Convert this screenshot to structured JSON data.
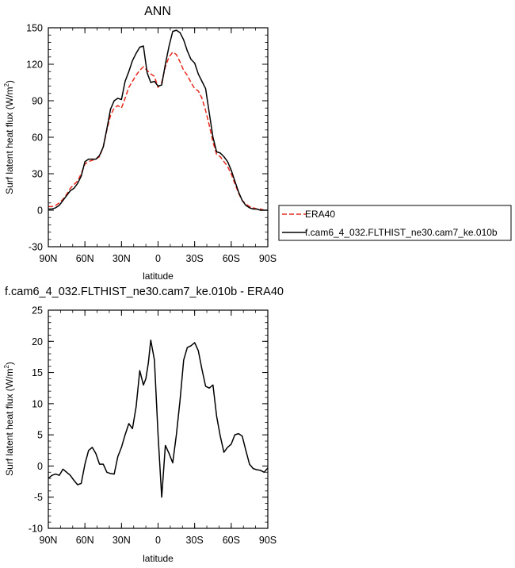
{
  "chart_data": [
    {
      "type": "line",
      "title": "ANN",
      "xlabel": "latitude",
      "ylabel": "Surf latent heat flux (W/m",
      "ylabel_sup": "2",
      "ylabel_close": ")",
      "xlim": [
        90,
        -90
      ],
      "ylim": [
        -30,
        150
      ],
      "x_ticks": [
        90,
        60,
        30,
        0,
        -30,
        -60,
        -90
      ],
      "x_tick_labels": [
        "90N",
        "60N",
        "30N",
        "0",
        "30S",
        "60S",
        "90S"
      ],
      "y_ticks": [
        -30,
        0,
        30,
        60,
        90,
        120,
        150
      ],
      "y_tick_labels": [
        "-30",
        "0",
        "30",
        "60",
        "90",
        "120",
        "150"
      ],
      "legend_position": "right",
      "series": [
        {
          "name": "ERA40",
          "color": "#e8291c",
          "dash": "dashed",
          "x": [
            90,
            87,
            84,
            81,
            78,
            75,
            72,
            69,
            66,
            63,
            60,
            57,
            54,
            51,
            48,
            45,
            42,
            39,
            36,
            33,
            30,
            27,
            24,
            21,
            18,
            15,
            12,
            9,
            6,
            3,
            0,
            -3,
            -6,
            -9,
            -12,
            -15,
            -18,
            -21,
            -24,
            -27,
            -30,
            -33,
            -36,
            -39,
            -42,
            -45,
            -48,
            -51,
            -54,
            -57,
            -60,
            -63,
            -66,
            -69,
            -72,
            -75,
            -78,
            -81,
            -84,
            -87,
            -90
          ],
          "y": [
            3,
            3,
            4,
            6,
            9,
            13,
            18,
            21,
            24,
            30,
            38,
            40,
            41,
            42,
            44,
            52,
            66,
            78,
            84,
            86,
            84,
            92,
            101,
            106,
            111,
            115,
            118,
            115,
            112,
            110,
            101,
            105,
            118,
            126,
            130,
            128,
            122,
            115,
            111,
            105,
            100,
            98,
            92,
            82,
            70,
            56,
            46,
            44,
            40,
            36,
            30,
            22,
            14,
            8,
            5,
            3,
            2,
            1,
            1,
            0,
            0
          ]
        },
        {
          "name": "f.cam6_4_032.FLTHIST_ne30.cam7_ke.010b",
          "color": "#000000",
          "dash": "solid",
          "x": [
            90,
            87,
            84,
            81,
            78,
            75,
            72,
            69,
            66,
            63,
            60,
            57,
            54,
            51,
            48,
            45,
            42,
            39,
            36,
            33,
            30,
            27,
            24,
            21,
            18,
            15,
            12,
            9,
            6,
            3,
            0,
            -3,
            -6,
            -9,
            -12,
            -15,
            -18,
            -21,
            -24,
            -27,
            -30,
            -33,
            -36,
            -39,
            -42,
            -45,
            -48,
            -51,
            -54,
            -57,
            -60,
            -63,
            -66,
            -69,
            -72,
            -75,
            -78,
            -81,
            -84,
            -87,
            -90
          ],
          "y": [
            1,
            1,
            2,
            4,
            8,
            12,
            16,
            18,
            22,
            28,
            40,
            42,
            42,
            42,
            45,
            52,
            67,
            83,
            90,
            92,
            91,
            106,
            114,
            123,
            129,
            134,
            135,
            113,
            105,
            106,
            102,
            103,
            120,
            135,
            147,
            148,
            146,
            140,
            131,
            124,
            121,
            112,
            106,
            100,
            80,
            60,
            48,
            47,
            44,
            40,
            33,
            24,
            15,
            8,
            4,
            2,
            1,
            1,
            0,
            0,
            0
          ]
        }
      ]
    },
    {
      "type": "line",
      "title": "f.cam6_4_032.FLTHIST_ne30.cam7_ke.010b - ERA40",
      "xlabel": "latitude",
      "ylabel": "Surf latent heat flux (W/m",
      "ylabel_sup": "2",
      "ylabel_close": ")",
      "xlim": [
        90,
        -90
      ],
      "ylim": [
        -10,
        25
      ],
      "x_ticks": [
        90,
        60,
        30,
        0,
        -30,
        -60,
        -90
      ],
      "x_tick_labels": [
        "90N",
        "60N",
        "30N",
        "0",
        "30S",
        "60S",
        "90S"
      ],
      "y_ticks": [
        -10,
        -5,
        0,
        5,
        10,
        15,
        20,
        25
      ],
      "y_tick_labels": [
        "-10",
        "-5",
        "0",
        "5",
        "10",
        "15",
        "20",
        "25"
      ],
      "series": [
        {
          "color": "#000000",
          "dash": "solid",
          "x": [
            90,
            87,
            84,
            81,
            78,
            75,
            72,
            69,
            66,
            63,
            60,
            57,
            54,
            51,
            48,
            45,
            42,
            39,
            36,
            33,
            30,
            27,
            24,
            21,
            18,
            15,
            12,
            10,
            8,
            6,
            3,
            0,
            -3,
            -6,
            -9,
            -12,
            -15,
            -18,
            -21,
            -24,
            -27,
            -30,
            -33,
            -36,
            -39,
            -42,
            -45,
            -48,
            -51,
            -54,
            -57,
            -60,
            -63,
            -66,
            -69,
            -72,
            -75,
            -78,
            -81,
            -84,
            -87,
            -90
          ],
          "y": [
            -2,
            -1.5,
            -1.3,
            -1.5,
            -0.5,
            -1,
            -1.5,
            -2.3,
            -3,
            -2.8,
            0.3,
            2.5,
            3,
            2,
            0.3,
            0.3,
            -1,
            -1.2,
            -1.3,
            1.5,
            3,
            5,
            6.8,
            6,
            9.5,
            15.3,
            13,
            14,
            16.5,
            20.2,
            17,
            5,
            -5,
            3.3,
            2,
            0.5,
            5,
            10.5,
            17,
            19,
            19.3,
            19.8,
            18.5,
            15.5,
            12.8,
            12.5,
            13,
            8,
            4.8,
            2.2,
            3,
            3.5,
            5,
            5.2,
            4.8,
            2.5,
            0.3,
            -0.4,
            -0.6,
            -0.7,
            -1,
            -0.3
          ]
        }
      ]
    }
  ]
}
